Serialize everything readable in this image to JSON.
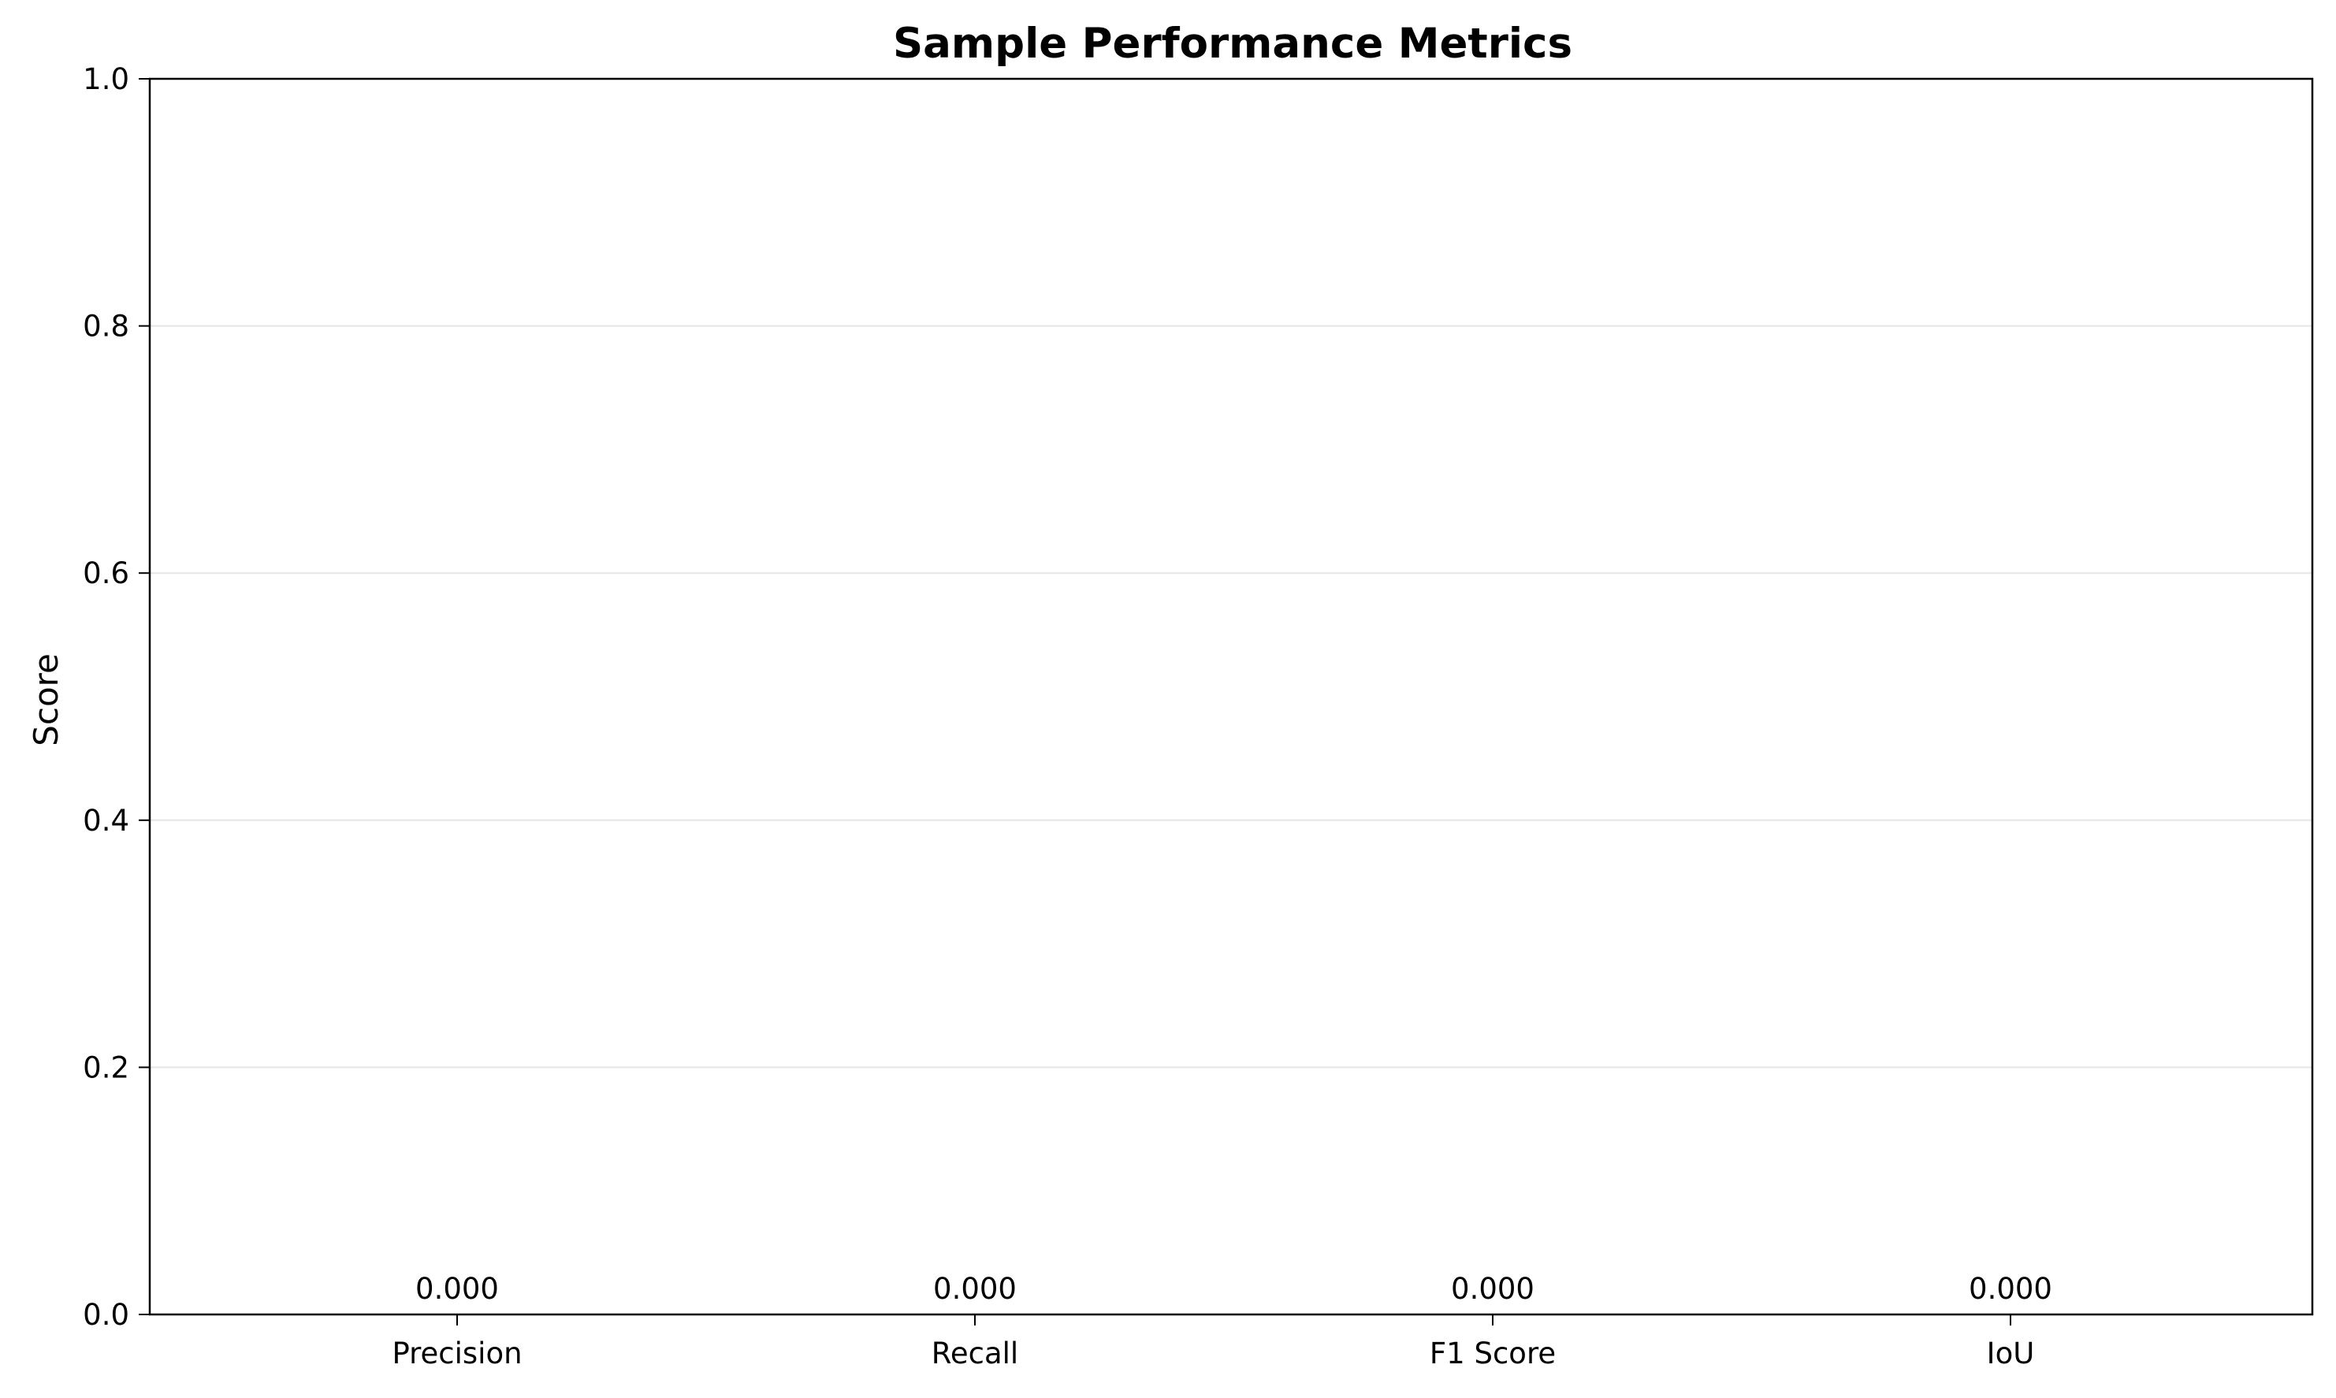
{
  "chart_data": {
    "type": "bar",
    "title": "Sample Performance Metrics",
    "xlabel": "",
    "ylabel": "Score",
    "categories": [
      "Precision",
      "Recall",
      "F1 Score",
      "IoU"
    ],
    "values": [
      0.0,
      0.0,
      0.0,
      0.0
    ],
    "value_labels": [
      "0.000",
      "0.000",
      "0.000",
      "0.000"
    ],
    "ylim": [
      0,
      1.0
    ],
    "yticks": [
      0.0,
      0.2,
      0.4,
      0.6,
      0.8,
      1.0
    ],
    "ytick_labels": [
      "0.0",
      "0.2",
      "0.4",
      "0.6",
      "0.8",
      "1.0"
    ],
    "grid": "y-axis",
    "legend": "none",
    "colors": {
      "axis": "#000000",
      "grid": "#e6e6e6",
      "bar": "#4c72b0"
    }
  }
}
